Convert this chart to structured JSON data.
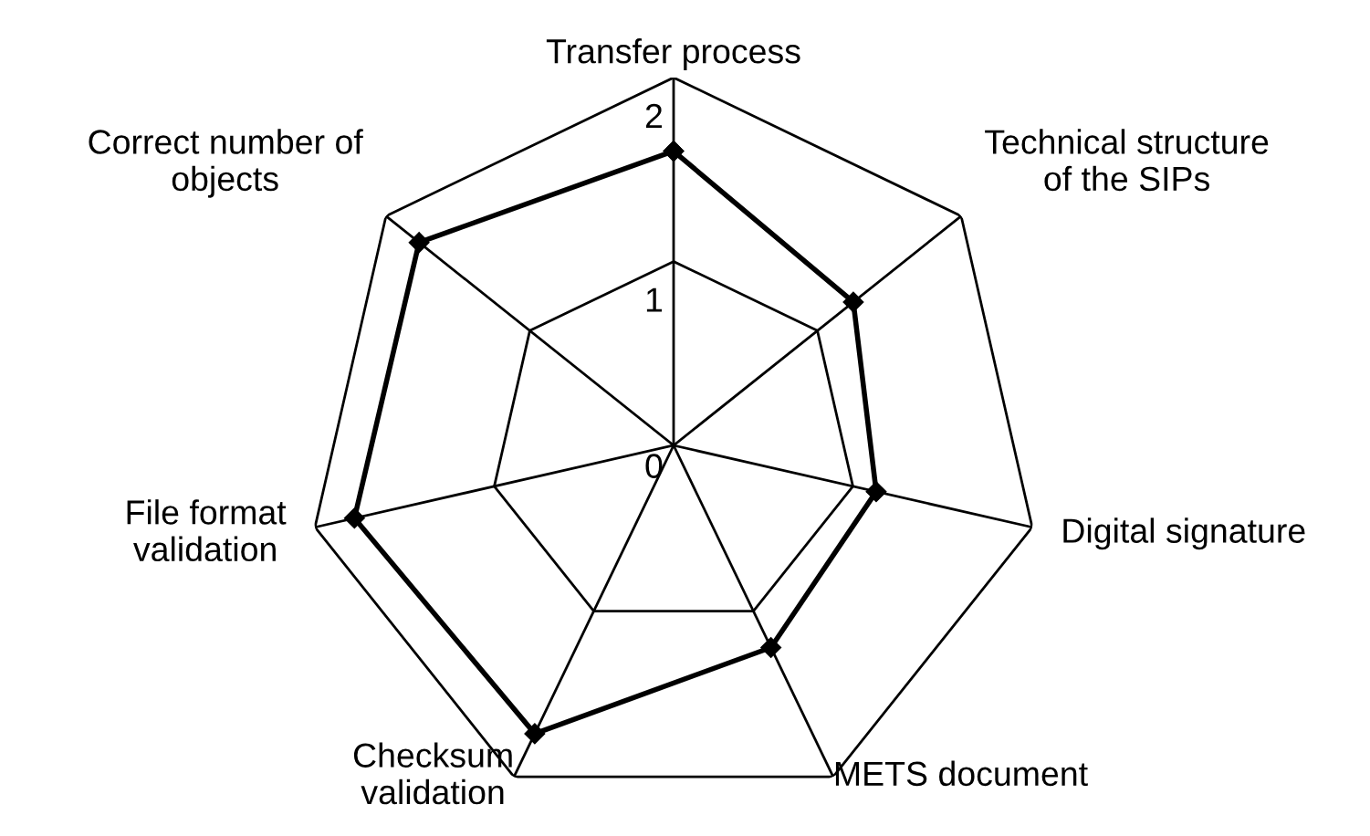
{
  "chart_data": {
    "type": "radar",
    "categories": [
      "Transfer process",
      "Technical structure\nof the SIPs",
      "Digital signature",
      "METS document",
      "Checksum\nvalidation",
      "File format\nvalidation",
      "Correct number of\nobjects"
    ],
    "series": [
      {
        "color": "#000000",
        "values": [
          1.6,
          1.25,
          1.13,
          1.22,
          1.74,
          1.78,
          1.77
        ]
      }
    ],
    "ylim": [
      0,
      2
    ],
    "yticks": [
      0,
      1,
      2
    ],
    "grid": true,
    "marker": "diamond",
    "line_style": "solid"
  }
}
